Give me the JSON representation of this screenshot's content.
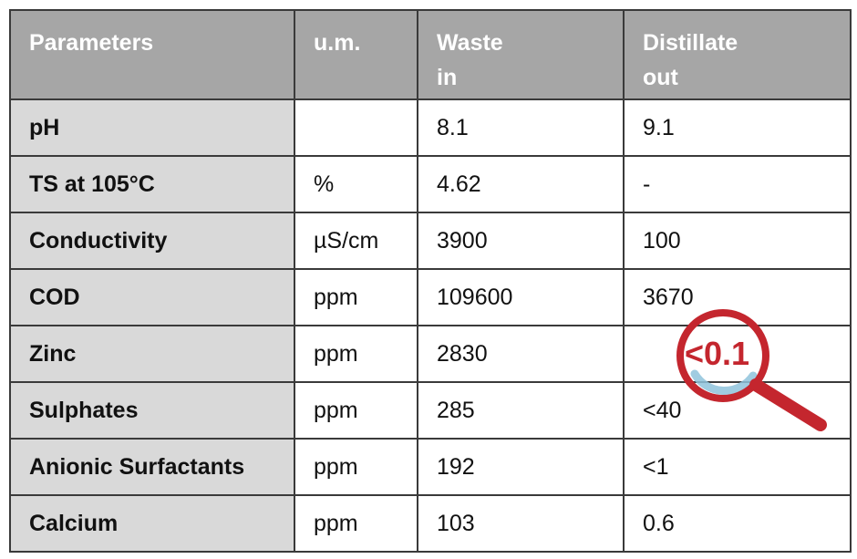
{
  "table": {
    "header": [
      [
        "Parameters"
      ],
      [
        "u.m."
      ],
      [
        "Waste",
        "in"
      ],
      [
        "Distillate",
        "out"
      ]
    ],
    "rows": [
      [
        "pH",
        null,
        "8.1",
        "9.1"
      ],
      [
        "TS at 105°C",
        "%",
        "4.62",
        "-"
      ],
      [
        "Conductivity",
        "µS/cm",
        "3900",
        "100"
      ],
      [
        "COD",
        "ppm",
        "109600",
        "3670"
      ],
      [
        "Zinc",
        "ppm",
        "2830",
        "<0.1"
      ],
      [
        "Sulphates",
        "ppm",
        "285",
        "<40"
      ],
      [
        "Anionic Surfactants",
        "ppm",
        "192",
        "<1"
      ],
      [
        "Calcium",
        "ppm",
        "103",
        "0.6"
      ]
    ]
  }
}
